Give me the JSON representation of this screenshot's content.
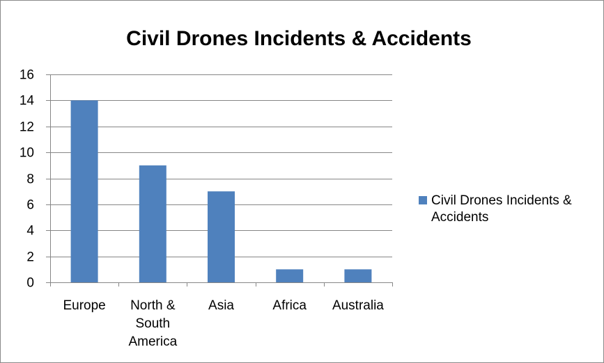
{
  "chart_data": {
    "type": "bar",
    "title": "Civil Drones Incidents & Accidents",
    "categories": [
      "Europe",
      "North & South America",
      "Asia",
      "Africa",
      "Australia"
    ],
    "category_lines": [
      [
        "Europe"
      ],
      [
        "North &",
        "South",
        "America"
      ],
      [
        "Asia"
      ],
      [
        "Africa"
      ],
      [
        "Australia"
      ]
    ],
    "series": [
      {
        "name": "Civil Drones Incidents & Accidents",
        "values": [
          14,
          9,
          7,
          1,
          1
        ],
        "color": "#4f81bd"
      }
    ],
    "legend_lines": [
      "Civil Drones Incidents &",
      "Accidents"
    ],
    "legend_position": "right",
    "xlabel": "",
    "ylabel": "",
    "ylim": [
      0,
      16
    ],
    "yticks": [
      0,
      2,
      4,
      6,
      8,
      10,
      12,
      14,
      16
    ],
    "grid": true
  }
}
